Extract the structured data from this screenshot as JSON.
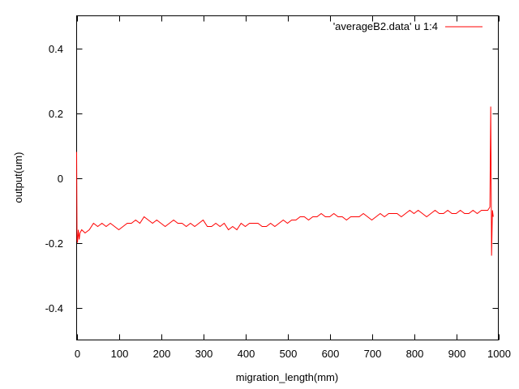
{
  "chart_data": {
    "type": "line",
    "title": "",
    "xlabel": "migration_length(mm)",
    "ylabel": "output(um)",
    "xlim": [
      0,
      1000
    ],
    "ylim": [
      -0.5,
      0.5
    ],
    "grid": false,
    "legend_position": "top-right",
    "x_ticks": [
      0,
      100,
      200,
      300,
      400,
      500,
      600,
      700,
      800,
      900,
      1000
    ],
    "x_tick_labels": [
      "0",
      "100",
      "200",
      "300",
      "400",
      "500",
      "600",
      "700",
      "800",
      "900",
      "1000"
    ],
    "y_ticks": [
      0.4,
      0.2,
      0,
      -0.2,
      -0.4
    ],
    "y_tick_labels": [
      "0.4",
      "0.2",
      "0",
      "-0.2",
      "-0.4"
    ],
    "series": [
      {
        "name": "'averageB2.data' u 1:4",
        "color": "#ff0000",
        "x": [
          0,
          1,
          2,
          4,
          6,
          8,
          12,
          20,
          30,
          40,
          50,
          60,
          70,
          80,
          90,
          100,
          110,
          120,
          130,
          140,
          150,
          160,
          170,
          180,
          190,
          200,
          210,
          220,
          230,
          240,
          250,
          260,
          270,
          280,
          290,
          300,
          310,
          320,
          330,
          340,
          350,
          360,
          370,
          380,
          390,
          400,
          410,
          420,
          430,
          440,
          450,
          460,
          470,
          480,
          490,
          500,
          510,
          520,
          530,
          540,
          550,
          560,
          570,
          580,
          590,
          600,
          610,
          620,
          630,
          640,
          650,
          660,
          670,
          680,
          690,
          700,
          710,
          720,
          730,
          740,
          750,
          760,
          770,
          780,
          790,
          800,
          810,
          820,
          830,
          840,
          850,
          860,
          870,
          880,
          890,
          900,
          910,
          920,
          930,
          940,
          950,
          960,
          970,
          975,
          980,
          982,
          984,
          986,
          988
        ],
        "y": [
          0.08,
          -0.19,
          -0.2,
          -0.16,
          -0.19,
          -0.17,
          -0.16,
          -0.17,
          -0.16,
          -0.14,
          -0.15,
          -0.14,
          -0.15,
          -0.14,
          -0.15,
          -0.16,
          -0.15,
          -0.14,
          -0.14,
          -0.13,
          -0.14,
          -0.12,
          -0.13,
          -0.14,
          -0.13,
          -0.14,
          -0.15,
          -0.14,
          -0.13,
          -0.14,
          -0.14,
          -0.15,
          -0.14,
          -0.15,
          -0.14,
          -0.13,
          -0.15,
          -0.15,
          -0.14,
          -0.15,
          -0.14,
          -0.16,
          -0.15,
          -0.16,
          -0.14,
          -0.15,
          -0.14,
          -0.14,
          -0.14,
          -0.15,
          -0.15,
          -0.14,
          -0.15,
          -0.14,
          -0.13,
          -0.14,
          -0.13,
          -0.13,
          -0.12,
          -0.12,
          -0.13,
          -0.12,
          -0.12,
          -0.11,
          -0.12,
          -0.12,
          -0.11,
          -0.12,
          -0.12,
          -0.13,
          -0.12,
          -0.12,
          -0.12,
          -0.11,
          -0.12,
          -0.13,
          -0.12,
          -0.11,
          -0.12,
          -0.11,
          -0.11,
          -0.11,
          -0.12,
          -0.11,
          -0.1,
          -0.11,
          -0.1,
          -0.11,
          -0.12,
          -0.11,
          -0.1,
          -0.11,
          -0.11,
          -0.1,
          -0.11,
          -0.11,
          -0.1,
          -0.11,
          -0.11,
          -0.1,
          -0.11,
          -0.1,
          -0.1,
          -0.1,
          -0.09,
          0.22,
          -0.24,
          -0.1,
          -0.12
        ]
      }
    ]
  }
}
